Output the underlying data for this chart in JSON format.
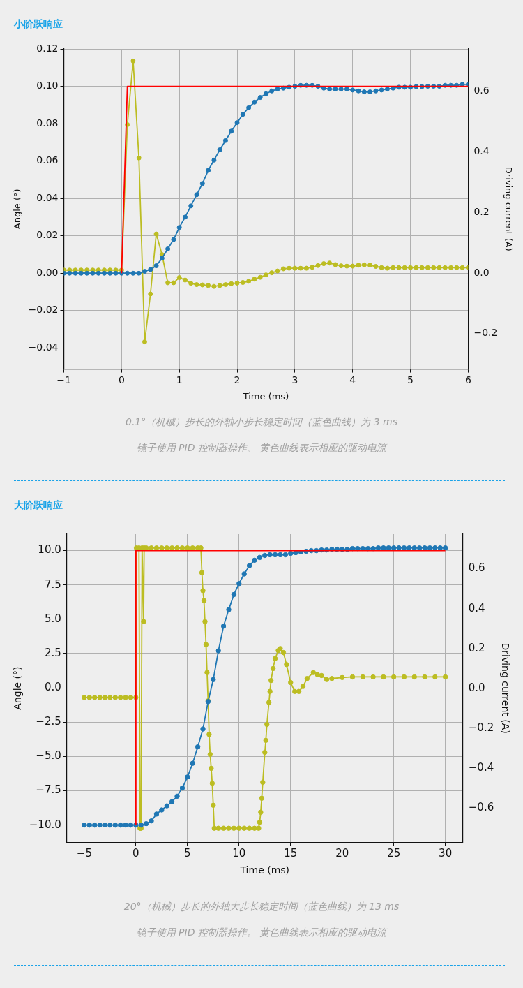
{
  "chart_data": [
    {
      "type": "line",
      "title": "小阶跃响应",
      "xlabel": "Time (ms)",
      "ylabel": "Angle (°)",
      "y2label": "Driving current (A)",
      "xlim": [
        -1,
        6
      ],
      "xticks": [
        {
          "value": -1,
          "label": "−1"
        },
        0,
        1,
        2,
        3,
        4,
        5,
        6
      ],
      "ylim": [
        -0.0513,
        0.12
      ],
      "yticks": [
        {
          "value": -0.04,
          "label": "−0.04"
        },
        {
          "value": -0.02,
          "label": "−0.02"
        },
        {
          "value": 0,
          "label": "0.00"
        },
        {
          "value": 0.02,
          "label": "0.02"
        },
        {
          "value": 0.04,
          "label": "0.04"
        },
        {
          "value": 0.06,
          "label": "0.06"
        },
        {
          "value": 0.08,
          "label": "0.08"
        },
        {
          "value": 0.1,
          "label": "0.10"
        },
        {
          "value": 0.12,
          "label": "0.12"
        }
      ],
      "y2lim": [
        -0.317,
        0.74
      ],
      "y2ticks": [
        {
          "value": -0.2,
          "label": "−0.2"
        },
        {
          "value": 0,
          "label": "0.0"
        },
        0.2,
        0.4,
        0.6
      ],
      "grid": true,
      "marker": "circle",
      "series": [
        {
          "color": "#ff0000",
          "marker": "none",
          "x": [
            0,
            0.1,
            6
          ],
          "values": [
            0,
            0.1,
            0.1
          ]
        },
        {
          "color": "#1f77b4",
          "x": [
            -1,
            -0.9,
            -0.8,
            -0.7,
            -0.6,
            -0.5,
            -0.4,
            -0.3,
            -0.2,
            -0.1,
            0,
            0.1,
            0.2,
            0.3,
            0.4,
            0.5,
            0.6,
            0.7,
            0.8,
            0.9,
            1,
            1.1,
            1.2,
            1.3,
            1.4,
            1.5,
            1.6,
            1.7,
            1.8,
            1.9,
            2,
            2.1,
            2.2,
            2.3,
            2.4,
            2.5,
            2.6,
            2.7,
            2.8,
            2.9,
            3,
            3.1,
            3.2,
            3.3,
            3.4,
            3.5,
            3.6,
            3.7,
            3.8,
            3.9,
            4,
            4.1,
            4.2,
            4.3,
            4.4,
            4.5,
            4.6,
            4.7,
            4.8,
            4.9,
            5,
            5.1,
            5.2,
            5.3,
            5.4,
            5.5,
            5.6,
            5.7,
            5.8,
            5.9,
            6
          ],
          "values": [
            0,
            0,
            0,
            0,
            0,
            0,
            0,
            0,
            0,
            0,
            0,
            0,
            0,
            0,
            0.001,
            0.002,
            0.004,
            0.008,
            0.013,
            0.018,
            0.0245,
            0.03,
            0.036,
            0.042,
            0.048,
            0.055,
            0.0605,
            0.066,
            0.071,
            0.076,
            0.0805,
            0.085,
            0.0885,
            0.0915,
            0.094,
            0.096,
            0.0975,
            0.0985,
            0.099,
            0.0995,
            0.1,
            0.1005,
            0.1005,
            0.1005,
            0.1,
            0.099,
            0.0985,
            0.0985,
            0.0985,
            0.0985,
            0.098,
            0.0975,
            0.097,
            0.097,
            0.0975,
            0.098,
            0.0985,
            0.099,
            0.0995,
            0.0995,
            0.0995,
            0.0998,
            0.0998,
            0.1,
            0.1,
            0.1,
            0.1005,
            0.1005,
            0.1005,
            0.101,
            0.101
          ]
        },
        {
          "color": "#bcbd22",
          "axis": "y2",
          "x": [
            -1,
            -0.9,
            -0.8,
            -0.7,
            -0.6,
            -0.5,
            -0.4,
            -0.3,
            -0.2,
            -0.1,
            0,
            0.1,
            0.2,
            0.3,
            0.4,
            0.5,
            0.6,
            0.7,
            0.8,
            0.9,
            1,
            1.1,
            1.2,
            1.3,
            1.4,
            1.5,
            1.6,
            1.7,
            1.8,
            1.9,
            2,
            2.1,
            2.2,
            2.3,
            2.4,
            2.5,
            2.6,
            2.7,
            2.8,
            2.9,
            3,
            3.1,
            3.2,
            3.3,
            3.4,
            3.5,
            3.6,
            3.7,
            3.8,
            3.9,
            4,
            4.1,
            4.2,
            4.3,
            4.4,
            4.5,
            4.6,
            4.7,
            4.8,
            4.9,
            5,
            5.1,
            5.2,
            5.3,
            5.4,
            5.5,
            5.6,
            5.7,
            5.8,
            5.9,
            6
          ],
          "values": [
            0.01,
            0.01,
            0.01,
            0.01,
            0.01,
            0.01,
            0.01,
            0.01,
            0.01,
            0.01,
            0.01,
            0.49,
            0.7,
            0.38,
            -0.227,
            -0.069,
            0.129,
            0.061,
            -0.032,
            -0.032,
            -0.015,
            -0.023,
            -0.034,
            -0.038,
            -0.039,
            -0.041,
            -0.044,
            -0.041,
            -0.038,
            -0.035,
            -0.033,
            -0.031,
            -0.027,
            -0.02,
            -0.014,
            -0.006,
            0.001,
            0.007,
            0.014,
            0.016,
            0.016,
            0.016,
            0.016,
            0.019,
            0.025,
            0.031,
            0.033,
            0.028,
            0.024,
            0.023,
            0.023,
            0.026,
            0.027,
            0.026,
            0.022,
            0.018,
            0.016,
            0.018,
            0.018,
            0.018,
            0.018,
            0.018,
            0.018,
            0.018,
            0.018,
            0.018,
            0.018,
            0.018,
            0.018,
            0.018,
            0.018
          ]
        }
      ],
      "annotations": [
        "0.1°（机械）步长的外轴小步长稳定时间（蓝色曲线）为 3 ms",
        "镜子使用 PID 控制器操作。 黄色曲线表示相应的驱动电流"
      ]
    },
    {
      "type": "line",
      "title": "大阶跃响应",
      "xlabel": "Time (ms)",
      "ylabel": "Angle (°)",
      "y2label": "Driving current (A)",
      "xlim": [
        -6.7,
        31.7
      ],
      "xticks": [
        {
          "value": -5,
          "label": "−5"
        },
        0,
        5,
        10,
        15,
        20,
        25,
        30
      ],
      "ylim": [
        -11.25,
        11.2
      ],
      "yticks": [
        {
          "value": -10,
          "label": "−10.0"
        },
        {
          "value": -7.5,
          "label": "−7.5"
        },
        {
          "value": -5,
          "label": "−5.0"
        },
        {
          "value": -2.5,
          "label": "−2.5"
        },
        {
          "value": 0,
          "label": "0.0"
        },
        2.5,
        {
          "value": 5,
          "label": "5.0"
        },
        7.5,
        {
          "value": 10,
          "label": "10.0"
        }
      ],
      "y2lim": [
        -0.77,
        0.773
      ],
      "y2ticks": [
        {
          "value": -0.6,
          "label": "−0.6"
        },
        {
          "value": -0.4,
          "label": "−0.4"
        },
        {
          "value": -0.2,
          "label": "−0.2"
        },
        {
          "value": 0,
          "label": "0.0"
        },
        0.2,
        0.4,
        0.6
      ],
      "grid": true,
      "marker": "circle",
      "series": [
        {
          "color": "#ff0000",
          "marker": "none",
          "x": [
            0,
            0,
            30
          ],
          "values": [
            -10,
            10,
            10
          ]
        },
        {
          "color": "#1f77b4",
          "x": [
            -5,
            -4.5,
            -4,
            -3.5,
            -3,
            -2.5,
            -2,
            -1.5,
            -1,
            -0.5,
            0,
            0.5,
            1,
            1.5,
            2,
            2.5,
            3,
            3.5,
            4,
            4.5,
            5,
            5.5,
            6,
            6.5,
            7,
            7.5,
            8,
            8.5,
            9,
            9.5,
            10,
            10.5,
            11,
            11.5,
            12,
            12.5,
            13,
            13.5,
            14,
            14.5,
            15,
            15.5,
            16,
            16.5,
            17,
            17.5,
            18,
            18.5,
            19,
            19.5,
            20,
            20.5,
            21,
            21.5,
            22,
            22.5,
            23,
            23.5,
            24,
            24.5,
            25,
            25.5,
            26,
            26.5,
            27,
            27.5,
            28,
            28.5,
            29,
            29.5,
            30
          ],
          "values": [
            -10,
            -10,
            -10,
            -10,
            -10,
            -10,
            -10,
            -10,
            -10,
            -10,
            -10,
            -10,
            -9.9,
            -9.7,
            -9.2,
            -8.9,
            -8.6,
            -8.3,
            -7.9,
            -7.3,
            -6.5,
            -5.5,
            -4.3,
            -3.0,
            -1.0,
            0.6,
            2.7,
            4.5,
            5.7,
            6.8,
            7.6,
            8.3,
            8.9,
            9.3,
            9.5,
            9.65,
            9.7,
            9.7,
            9.7,
            9.7,
            9.8,
            9.85,
            9.9,
            9.95,
            10.0,
            10.0,
            10.05,
            10.05,
            10.1,
            10.1,
            10.1,
            10.1,
            10.15,
            10.15,
            10.15,
            10.15,
            10.15,
            10.2,
            10.2,
            10.2,
            10.2,
            10.2,
            10.2,
            10.2,
            10.2,
            10.2,
            10.2,
            10.2,
            10.2,
            10.2,
            10.2
          ]
        },
        {
          "color": "#bcbd22",
          "axis": "y2",
          "x": [
            -5,
            -4.5,
            -4,
            -3.5,
            -3,
            -2.5,
            -2,
            -1.5,
            -1,
            -0.5,
            0,
            0.05,
            0.3,
            0.4,
            0.5,
            0.6,
            0.75,
            0.8,
            1,
            1.5,
            2,
            2.5,
            3,
            3.5,
            4,
            4.5,
            5,
            5.5,
            6,
            6.3,
            6.4,
            6.5,
            6.6,
            6.7,
            6.8,
            6.9,
            7.0,
            7.1,
            7.2,
            7.3,
            7.4,
            7.5,
            7.6,
            8,
            8.5,
            9,
            9.5,
            10,
            10.5,
            11,
            11.5,
            11.9,
            12.0,
            12.1,
            12.2,
            12.3,
            12.5,
            12.6,
            12.7,
            12.9,
            13.0,
            13.1,
            13.3,
            13.5,
            13.8,
            14.0,
            14.3,
            14.6,
            15.0,
            15.4,
            15.8,
            16.2,
            16.6,
            17.2,
            17.6,
            18.0,
            18.5,
            19,
            20,
            21,
            22,
            23,
            24,
            25,
            26,
            27,
            28,
            29,
            30
          ],
          "values": [
            -0.045,
            -0.045,
            -0.045,
            -0.045,
            -0.045,
            -0.045,
            -0.045,
            -0.045,
            -0.045,
            -0.045,
            -0.045,
            0.704,
            0.704,
            -0.7,
            -0.7,
            0.704,
            0.335,
            0.704,
            0.704,
            0.704,
            0.704,
            0.704,
            0.704,
            0.704,
            0.704,
            0.704,
            0.704,
            0.704,
            0.704,
            0.704,
            0.58,
            0.49,
            0.44,
            0.335,
            0.22,
            0.08,
            -0.062,
            -0.23,
            -0.33,
            -0.4,
            -0.475,
            -0.585,
            -0.7,
            -0.7,
            -0.7,
            -0.7,
            -0.7,
            -0.7,
            -0.7,
            -0.7,
            -0.7,
            -0.7,
            -0.67,
            -0.62,
            -0.55,
            -0.47,
            -0.32,
            -0.26,
            -0.18,
            -0.07,
            -0.015,
            0.04,
            0.1,
            0.15,
            0.19,
            0.2,
            0.18,
            0.12,
            0.03,
            -0.015,
            -0.015,
            0.01,
            0.05,
            0.08,
            0.07,
            0.065,
            0.045,
            0.05,
            0.055,
            0.058,
            0.058,
            0.058,
            0.058,
            0.058,
            0.058,
            0.058,
            0.058,
            0.058,
            0.058
          ]
        }
      ],
      "annotations": [
        "20°（机械）步长的外轴大步长稳定时间（蓝色曲线）为 13 ms",
        "镜子使用 PID 控制器操作。 黄色曲线表示相应的驱动电流"
      ]
    }
  ]
}
